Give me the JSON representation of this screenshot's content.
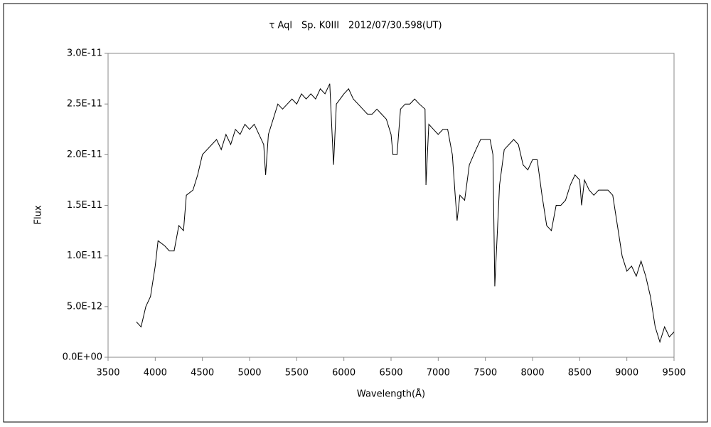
{
  "chart_data": {
    "type": "line",
    "title": "τ Aql　Sp. K0III　2012/07/30.598(UT)",
    "x_label": "Wavelength(Å)",
    "y_label": "Flux",
    "x": [
      3800,
      3850,
      3900,
      3950,
      4000,
      4030,
      4100,
      4150,
      4200,
      4250,
      4300,
      4330,
      4400,
      4450,
      4500,
      4550,
      4600,
      4650,
      4700,
      4750,
      4800,
      4850,
      4900,
      4950,
      5000,
      5050,
      5100,
      5150,
      5170,
      5200,
      5250,
      5300,
      5350,
      5400,
      5450,
      5500,
      5550,
      5600,
      5650,
      5700,
      5750,
      5800,
      5850,
      5890,
      5920,
      6000,
      6050,
      6100,
      6150,
      6200,
      6250,
      6300,
      6350,
      6400,
      6450,
      6500,
      6520,
      6563,
      6600,
      6650,
      6700,
      6750,
      6800,
      6860,
      6870,
      6900,
      6950,
      7000,
      7050,
      7100,
      7150,
      7180,
      7200,
      7230,
      7280,
      7330,
      7400,
      7450,
      7500,
      7550,
      7580,
      7600,
      7620,
      7650,
      7700,
      7750,
      7800,
      7850,
      7900,
      7950,
      8000,
      8050,
      8100,
      8150,
      8200,
      8250,
      8300,
      8350,
      8400,
      8450,
      8500,
      8520,
      8550,
      8600,
      8650,
      8700,
      8750,
      8800,
      8850,
      8900,
      8950,
      9000,
      9050,
      9100,
      9150,
      9200,
      9250,
      9300,
      9350,
      9400,
      9450,
      9500
    ],
    "series": [
      {
        "name": "Flux",
        "color": "#000000",
        "values": [
          3.5e-12,
          3e-12,
          5e-12,
          6e-12,
          9e-12,
          1.15e-11,
          1.1e-11,
          1.05e-11,
          1.05e-11,
          1.3e-11,
          1.25e-11,
          1.6e-11,
          1.65e-11,
          1.8e-11,
          2e-11,
          2.05e-11,
          2.1e-11,
          2.15e-11,
          2.05e-11,
          2.2e-11,
          2.1e-11,
          2.25e-11,
          2.2e-11,
          2.3e-11,
          2.25e-11,
          2.3e-11,
          2.2e-11,
          2.1e-11,
          1.8e-11,
          2.2e-11,
          2.35e-11,
          2.5e-11,
          2.45e-11,
          2.5e-11,
          2.55e-11,
          2.5e-11,
          2.6e-11,
          2.55e-11,
          2.6e-11,
          2.55e-11,
          2.65e-11,
          2.6e-11,
          2.7e-11,
          1.9e-11,
          2.5e-11,
          2.6e-11,
          2.65e-11,
          2.55e-11,
          2.5e-11,
          2.45e-11,
          2.4e-11,
          2.4e-11,
          2.45e-11,
          2.4e-11,
          2.35e-11,
          2.2e-11,
          2e-11,
          2e-11,
          2.45e-11,
          2.5e-11,
          2.5e-11,
          2.55e-11,
          2.5e-11,
          2.45e-11,
          1.7e-11,
          2.3e-11,
          2.25e-11,
          2.2e-11,
          2.25e-11,
          2.25e-11,
          2e-11,
          1.6e-11,
          1.35e-11,
          1.6e-11,
          1.55e-11,
          1.9e-11,
          2.05e-11,
          2.15e-11,
          2.15e-11,
          2.15e-11,
          2e-11,
          7e-12,
          1.1e-11,
          1.7e-11,
          2.05e-11,
          2.1e-11,
          2.15e-11,
          2.1e-11,
          1.9e-11,
          1.85e-11,
          1.95e-11,
          1.95e-11,
          1.6e-11,
          1.3e-11,
          1.25e-11,
          1.5e-11,
          1.5e-11,
          1.55e-11,
          1.7e-11,
          1.8e-11,
          1.75e-11,
          1.5e-11,
          1.75e-11,
          1.65e-11,
          1.6e-11,
          1.65e-11,
          1.65e-11,
          1.65e-11,
          1.6e-11,
          1.3e-11,
          1e-11,
          8.5e-12,
          9e-12,
          8e-12,
          9.5e-12,
          8e-12,
          6e-12,
          3e-12,
          1.5e-12,
          3e-12,
          2e-12,
          2.5e-12
        ]
      }
    ],
    "xlim": [
      3500,
      9500
    ],
    "xticks": [
      3500,
      4000,
      4500,
      5000,
      5500,
      6000,
      6500,
      7000,
      7500,
      8000,
      8500,
      9000,
      9500
    ],
    "ylim": [
      0,
      3e-11
    ],
    "yticks": [
      {
        "value": 0,
        "label": "0.0E+00"
      },
      {
        "value": 5e-12,
        "label": "5.0E-12"
      },
      {
        "value": 1e-11,
        "label": "1.0E-11"
      },
      {
        "value": 1.5e-11,
        "label": "1.5E-11"
      },
      {
        "value": 2e-11,
        "label": "2.0E-11"
      },
      {
        "value": 2.5e-11,
        "label": "2.5E-11"
      },
      {
        "value": 3e-11,
        "label": "3.0E-11"
      }
    ],
    "grid": false
  }
}
